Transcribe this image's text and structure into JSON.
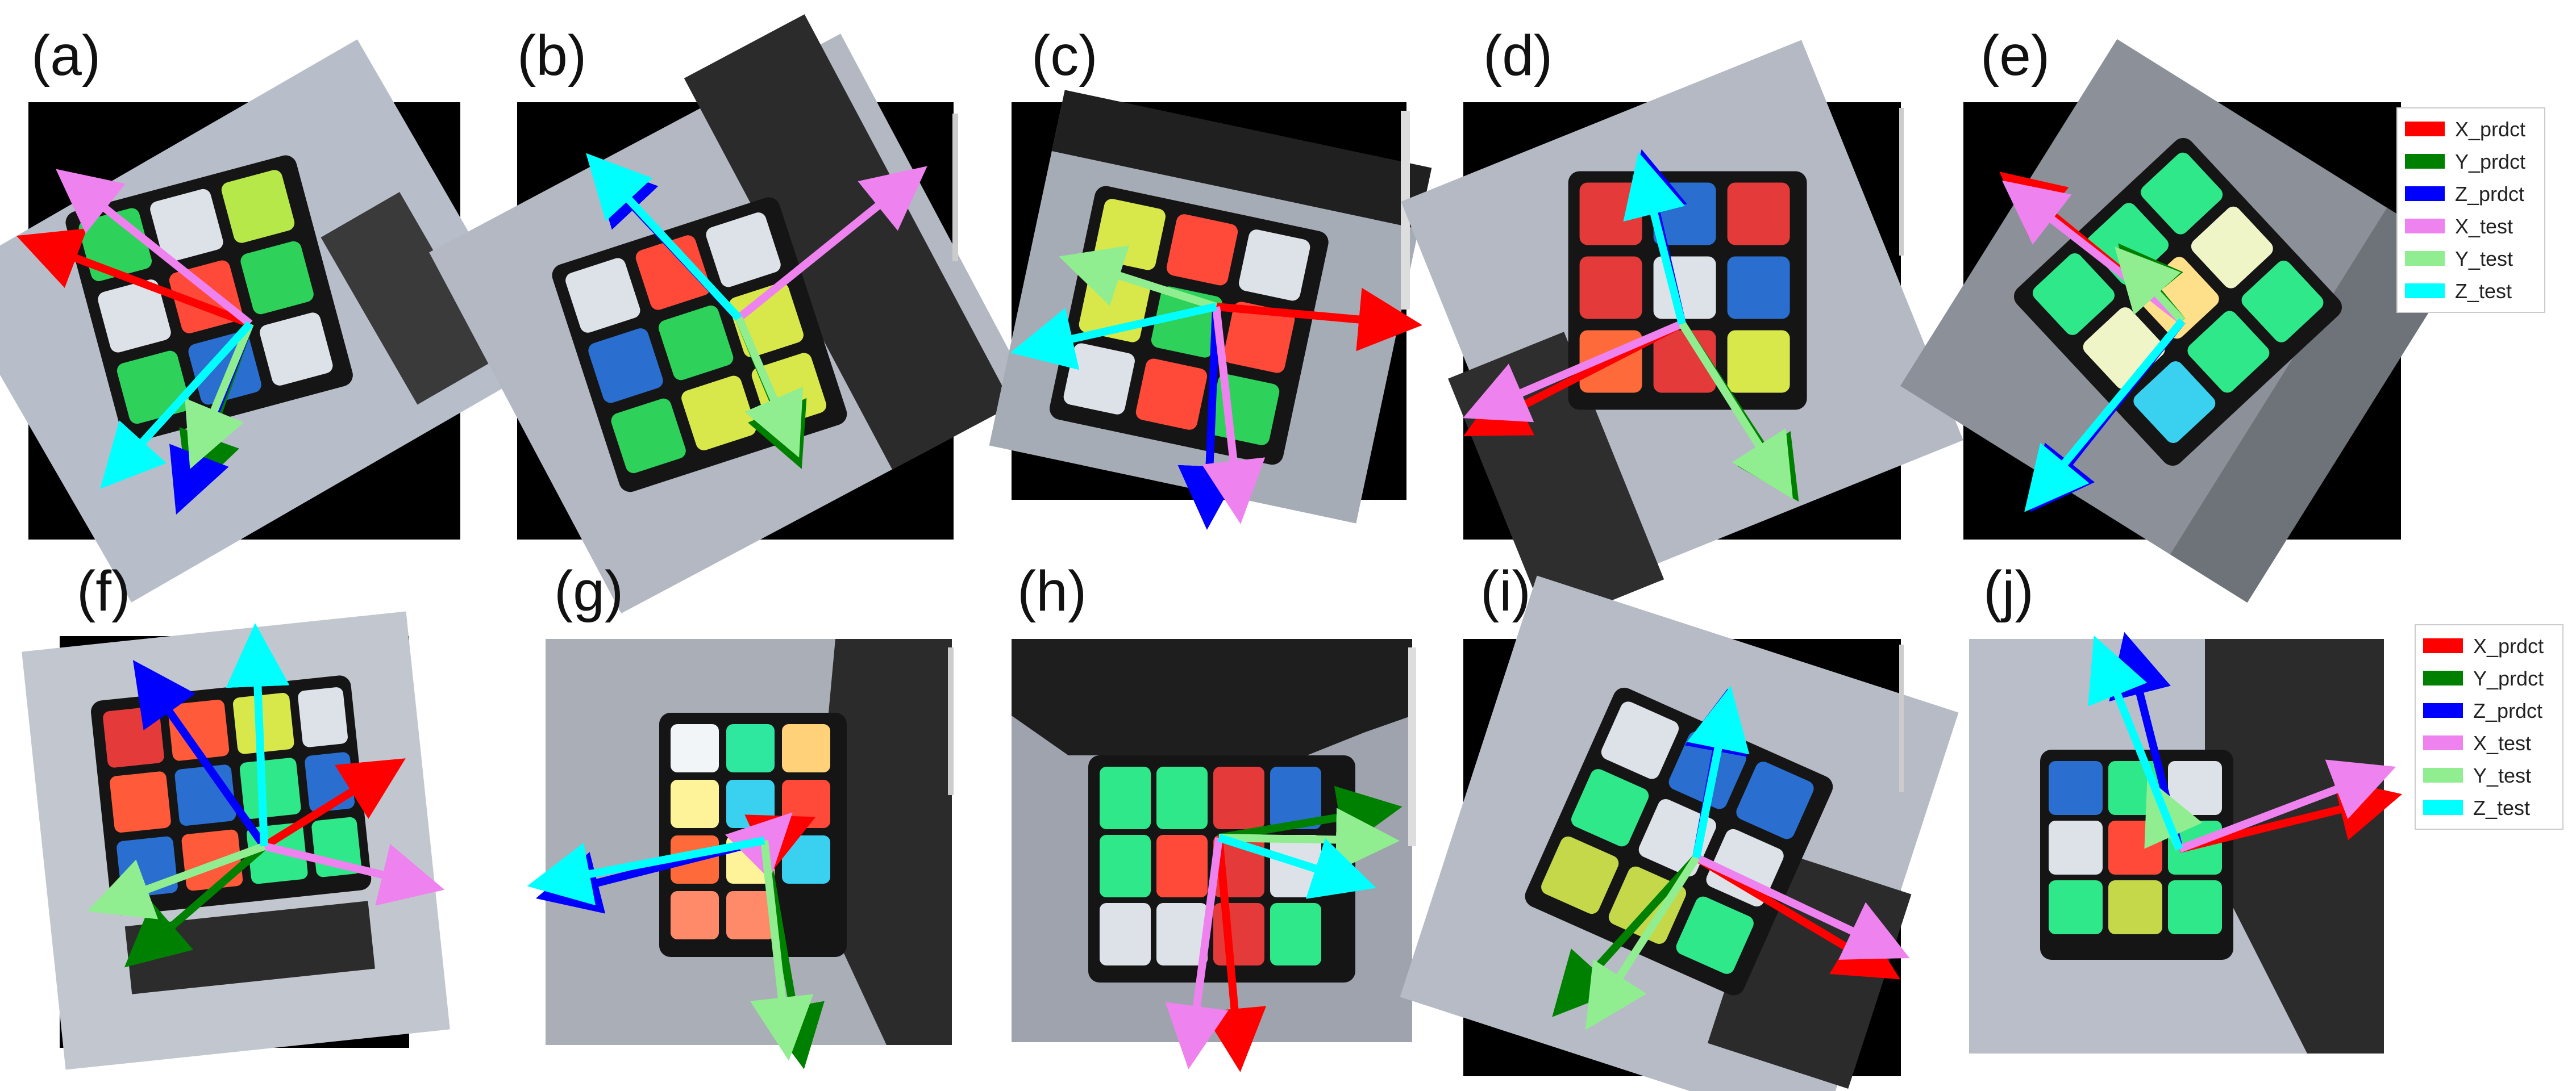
{
  "figure": {
    "panels": [
      {
        "label": "(a)"
      },
      {
        "label": "(b)"
      },
      {
        "label": "(c)"
      },
      {
        "label": "(d)"
      },
      {
        "label": "(e)"
      },
      {
        "label": "(f)"
      },
      {
        "label": "(g)"
      },
      {
        "label": "(h)"
      },
      {
        "label": "(i)"
      },
      {
        "label": "(j)"
      }
    ],
    "legend": {
      "entries": [
        {
          "label": "X_prdct",
          "color": "#ff0000"
        },
        {
          "label": "Y_prdct",
          "color": "#008000"
        },
        {
          "label": "Z_prdct",
          "color": "#0000ff"
        },
        {
          "label": "X_test",
          "color": "#ee82ee"
        },
        {
          "label": "Y_test",
          "color": "#90ee90"
        },
        {
          "label": "Z_test",
          "color": "#00ffff"
        }
      ]
    }
  }
}
